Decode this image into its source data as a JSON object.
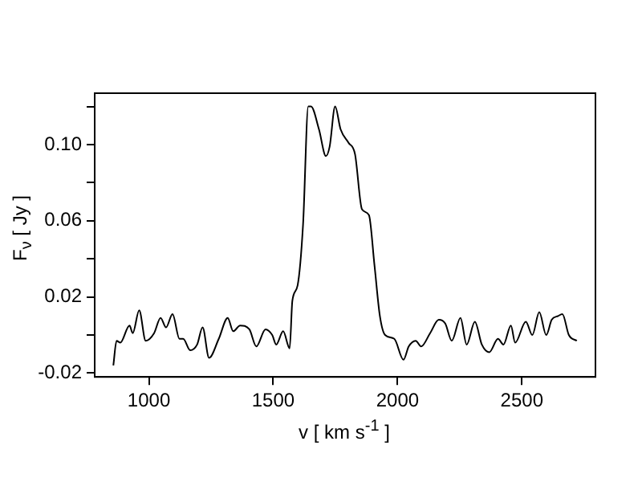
{
  "chart_data": {
    "type": "line",
    "xlabel": "v [ km s$^{-1}$ ]",
    "ylabel": "F$_{ν}$ [ Jy ]",
    "x": [
      857,
      870,
      885,
      922,
      935,
      961,
      987,
      1021,
      1047,
      1069,
      1095,
      1123,
      1138,
      1166,
      1194,
      1216,
      1242,
      1281,
      1317,
      1339,
      1367,
      1404,
      1432,
      1469,
      1496,
      1512,
      1540,
      1566,
      1577,
      1598,
      1620,
      1641,
      1652,
      1684,
      1712,
      1727,
      1749,
      1771,
      1803,
      1829,
      1857,
      1885,
      1907,
      1929,
      1950,
      1987,
      2024,
      2045,
      2073,
      2095,
      2131,
      2166,
      2192,
      2218,
      2253,
      2278,
      2311,
      2339,
      2369,
      2404,
      2426,
      2456,
      2473,
      2516,
      2542,
      2570,
      2598,
      2620,
      2646,
      2663,
      2689,
      2721
    ],
    "series": [
      {
        "color": "#000000",
        "values": [
          -0.016,
          -0.003,
          -0.004,
          0.005,
          0.001,
          0.013,
          -0.003,
          0.001,
          0.009,
          0.004,
          0.011,
          -0.002,
          -0.002,
          -0.008,
          -0.005,
          0.004,
          -0.012,
          -0.002,
          0.009,
          0.002,
          0.005,
          0.003,
          -0.006,
          0.003,
          0.0,
          -0.005,
          0.002,
          -0.007,
          0.018,
          0.026,
          0.058,
          0.12,
          0.12,
          0.108,
          0.094,
          0.099,
          0.12,
          0.108,
          0.101,
          0.095,
          0.066,
          0.063,
          0.037,
          0.01,
          0.0,
          -0.002,
          -0.013,
          -0.006,
          -0.003,
          -0.006,
          0.001,
          0.008,
          0.006,
          -0.003,
          0.009,
          -0.005,
          0.007,
          -0.005,
          -0.009,
          -0.002,
          -0.005,
          0.005,
          -0.004,
          0.007,
          0.0,
          0.012,
          0.0,
          0.008,
          0.01,
          0.011,
          0.0,
          -0.003
        ]
      }
    ],
    "xlim": [
      782,
      2796
    ],
    "xticks": [
      1000,
      1500,
      2000,
      2500
    ],
    "ylim": [
      -0.022,
      0.127
    ],
    "yticks": [
      -0.02,
      {
        "value": 0,
        "label": null
      },
      0.02,
      {
        "value": 0.04,
        "label": null
      },
      0.06,
      {
        "value": 0.08,
        "label": null
      },
      {
        "value": 0.1,
        "label": "0.10"
      },
      {
        "value": 0.12,
        "label": null
      }
    ],
    "grid": false,
    "legend": false,
    "marker": "none",
    "line_style": "solid"
  }
}
